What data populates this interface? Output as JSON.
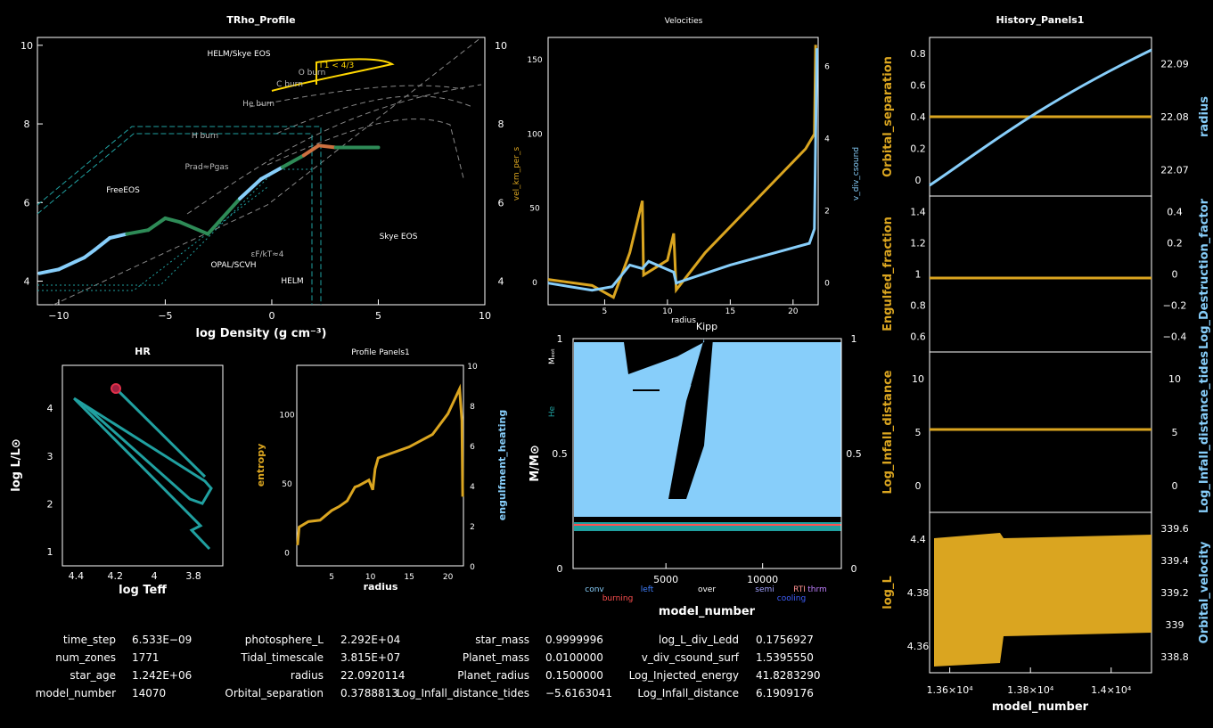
{
  "colors": {
    "orange": "#daa520",
    "blue": "#87cefa",
    "green": "#2e8b57",
    "teal": "#20a0a0",
    "yellow": "#ffd700",
    "red": "#e0304a",
    "gray": "#888888"
  },
  "trho": {
    "title": "TRho_Profile",
    "xlabel": "log Density (g cm⁻³)",
    "xticks": [
      "−10",
      "−5",
      "0",
      "5",
      "10"
    ],
    "yticks": [
      "4",
      "6",
      "8",
      "10"
    ],
    "ryticks": [
      "4",
      "6",
      "8",
      "10"
    ],
    "regions": [
      "HELM/Skye EOS",
      "FreeEOS",
      "Skye EOS",
      "OPAL/SCVH",
      "HELM"
    ],
    "burn_labels": [
      "O burn",
      "C burn",
      "He burn",
      "H burn"
    ],
    "prad_label": "Prad≈Pgas",
    "gamma_label": "Γ1 < 4/3",
    "eps_label": "εF/kT≈4",
    "profile": [
      [
        -10.9,
        4.2
      ],
      [
        -10,
        4.3
      ],
      [
        -9.2,
        4.5
      ],
      [
        -8.8,
        4.6
      ],
      [
        -8.3,
        4.8
      ],
      [
        -7.6,
        5.1
      ],
      [
        -6.8,
        5.2
      ],
      [
        -5.8,
        5.3
      ],
      [
        -5,
        5.6
      ],
      [
        -4.3,
        5.5
      ],
      [
        -3,
        5.2
      ],
      [
        -2.5,
        5.5
      ],
      [
        -1.5,
        6.1
      ],
      [
        -0.5,
        6.6
      ],
      [
        0.5,
        6.9
      ],
      [
        1.5,
        7.2
      ],
      [
        2.2,
        7.45
      ],
      [
        3,
        7.4
      ],
      [
        5,
        7.4
      ]
    ]
  },
  "vel": {
    "title": "Velocities",
    "xlabel": "radius",
    "ylabel": "vel_km_per_s",
    "rlabel": "v_div_csound",
    "xticks": [
      "5",
      "10",
      "15",
      "20"
    ],
    "yticks": [
      "0",
      "50",
      "100",
      "150"
    ],
    "ryticks": [
      "0",
      "2",
      "4",
      "6"
    ]
  },
  "kipp": {
    "title": "Kipp",
    "xlabel": "model_number",
    "ylabel": "M/M⊙",
    "mlabel": "Mₒₒₜ",
    "helabel": "He",
    "xticks": [
      "5000",
      "10000"
    ],
    "yticks": [
      "0",
      "0.5",
      "1"
    ],
    "ryticks": [
      "0",
      "0.5",
      "1"
    ],
    "legend": [
      {
        "t": "conv",
        "c": "#87cefa"
      },
      {
        "t": "burning",
        "c": "#ff5050"
      },
      {
        "t": "left",
        "c": "#4080ff"
      },
      {
        "t": "over",
        "c": "#ffffff"
      },
      {
        "t": "semi",
        "c": "#a0a0ff"
      },
      {
        "t": "cooling",
        "c": "#4060ff"
      },
      {
        "t": "RTI",
        "c": "#ff9090"
      },
      {
        "t": "thrm",
        "c": "#c080ff"
      }
    ]
  },
  "hist": {
    "title": "History_Panels1",
    "xlabel": "model_number",
    "xticks": [
      "1.36×10⁴",
      "1.38×10⁴",
      "1.4×10⁴"
    ],
    "panels": [
      {
        "l": "Orbital_separation",
        "r": "radius",
        "lt": [
          "0",
          "0.2",
          "0.4",
          "0.6",
          "0.8"
        ],
        "rt": [
          "22.07",
          "22.08",
          "22.09"
        ]
      },
      {
        "l": "Engulfed_fraction",
        "r": "Log_Destruction_factor",
        "lt": [
          "0.6",
          "0.8",
          "1",
          "1.2",
          "1.4"
        ],
        "rt": [
          "−0.4",
          "−0.2",
          "0",
          "0.2",
          "0.4"
        ]
      },
      {
        "l": "Log_Infall_distance",
        "r": "Log_Infall_distance_tides",
        "lt": [
          "0",
          "5",
          "10"
        ],
        "rt": [
          "0",
          "5",
          "10"
        ]
      },
      {
        "l": "log_L",
        "r": "Orbital_velocity",
        "lt": [
          "4.36",
          "4.38",
          "4.4"
        ],
        "rt": [
          "338.8",
          "339",
          "339.2",
          "339.4",
          "339.6"
        ]
      }
    ]
  },
  "hr": {
    "title": "HR",
    "xlabel": "log Teff",
    "ylabel": "log L/L⊙",
    "xticks": [
      "4.4",
      "4.2",
      "4",
      "3.8"
    ],
    "yticks": [
      "1",
      "2",
      "3",
      "4"
    ]
  },
  "pp": {
    "title": "Profile Panels1",
    "xlabel": "radius",
    "ylabel": "entropy",
    "rlabel": "engulfment_heating",
    "xticks": [
      "5",
      "10",
      "15",
      "20"
    ],
    "yticks": [
      "0",
      "50",
      "100"
    ],
    "ryticks": [
      "0",
      "2",
      "4",
      "6",
      "8",
      "10"
    ]
  },
  "info": [
    [
      [
        "time_step",
        "6.533E−09"
      ],
      [
        "photosphere_L",
        "2.292E+04"
      ],
      [
        "star_mass",
        "0.9999996"
      ],
      [
        "log_L_div_Ledd",
        "0.1756927"
      ]
    ],
    [
      [
        "num_zones",
        "1771"
      ],
      [
        "Tidal_timescale",
        "3.815E+07"
      ],
      [
        "Planet_mass",
        "0.0100000"
      ],
      [
        "v_div_csound_surf",
        "1.5395550"
      ]
    ],
    [
      [
        "star_age",
        "1.242E+06"
      ],
      [
        "radius",
        "22.0920114"
      ],
      [
        "Planet_radius",
        "0.1500000"
      ],
      [
        "Log_Injected_energy",
        "41.8283290"
      ]
    ],
    [
      [
        "model_number",
        "14070"
      ],
      [
        "Orbital_separation",
        "0.3788813"
      ],
      [
        "Log_Infall_distance_tides",
        "−5.6163041"
      ],
      [
        "Log_Infall_distance",
        "6.1909176"
      ]
    ]
  ]
}
